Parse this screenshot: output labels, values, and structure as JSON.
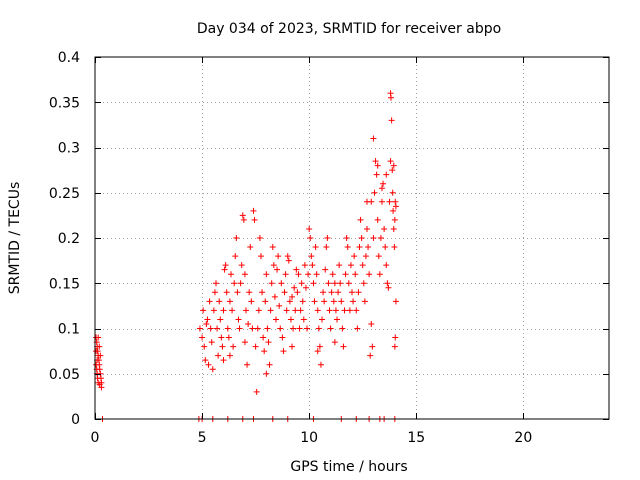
{
  "chart_data": {
    "type": "scatter",
    "title": "Day 034 of 2023, SRMTID for receiver abpo",
    "xlabel": "GPS time / hours",
    "ylabel": "SRMTID / TECUs",
    "xlim": [
      0,
      24
    ],
    "ylim": [
      0,
      0.4
    ],
    "grid": true,
    "marker": "+",
    "color": "#ff0000",
    "x_ticks": [
      {
        "value": 0,
        "label": "0"
      },
      {
        "value": 5,
        "label": "5"
      },
      {
        "value": 10,
        "label": "10"
      },
      {
        "value": 15,
        "label": "15"
      },
      {
        "value": 20,
        "label": "20"
      }
    ],
    "y_ticks": [
      {
        "value": 0,
        "label": "0"
      },
      {
        "value": 0.05,
        "label": "0.05"
      },
      {
        "value": 0.1,
        "label": "0.1"
      },
      {
        "value": 0.15,
        "label": "0.15"
      },
      {
        "value": 0.2,
        "label": "0.2"
      },
      {
        "value": 0.25,
        "label": "0.25"
      },
      {
        "value": 0.3,
        "label": "0.3"
      },
      {
        "value": 0.35,
        "label": "0.35"
      },
      {
        "value": 0.4,
        "label": "0.4"
      }
    ],
    "series": [
      {
        "name": "SRMTID",
        "points": [
          [
            0.05,
            0.09
          ],
          [
            0.08,
            0.085
          ],
          [
            0.1,
            0.08
          ],
          [
            0.12,
            0.075
          ],
          [
            0.15,
            0.07
          ],
          [
            0.05,
            0.06
          ],
          [
            0.08,
            0.055
          ],
          [
            0.1,
            0.05
          ],
          [
            0.12,
            0.045
          ],
          [
            0.15,
            0.04
          ],
          [
            0.18,
            0.065
          ],
          [
            0.2,
            0.06
          ],
          [
            0.22,
            0.055
          ],
          [
            0.25,
            0.05
          ],
          [
            0.28,
            0.045
          ],
          [
            0.3,
            0.04
          ],
          [
            0.3,
            0.035
          ],
          [
            0.2,
            0.08
          ],
          [
            0.15,
            0.09
          ],
          [
            0.25,
            0.07
          ],
          [
            0.1,
            0.065
          ],
          [
            0.05,
            0.075
          ],
          [
            0.22,
            0.038
          ],
          [
            0.35,
            0.0
          ],
          [
            4.85,
            0.0
          ],
          [
            5.0,
            0.0
          ],
          [
            5.5,
            0.0
          ],
          [
            6.2,
            0.0
          ],
          [
            6.9,
            0.0
          ],
          [
            7.4,
            0.0
          ],
          [
            8.3,
            0.0
          ],
          [
            9.0,
            0.0
          ],
          [
            10.2,
            0.0
          ],
          [
            11.5,
            0.0
          ],
          [
            12.2,
            0.0
          ],
          [
            12.8,
            0.0
          ],
          [
            13.3,
            0.0
          ],
          [
            13.5,
            0.0
          ],
          [
            14.0,
            0.0
          ],
          [
            4.9,
            0.1
          ],
          [
            5.0,
            0.09
          ],
          [
            5.05,
            0.12
          ],
          [
            5.1,
            0.08
          ],
          [
            5.15,
            0.065
          ],
          [
            5.2,
            0.105
          ],
          [
            5.25,
            0.11
          ],
          [
            5.3,
            0.06
          ],
          [
            5.35,
            0.13
          ],
          [
            5.4,
            0.1
          ],
          [
            5.45,
            0.085
          ],
          [
            5.5,
            0.055
          ],
          [
            5.55,
            0.12
          ],
          [
            5.6,
            0.14
          ],
          [
            5.65,
            0.15
          ],
          [
            5.7,
            0.1
          ],
          [
            5.75,
            0.07
          ],
          [
            5.8,
            0.13
          ],
          [
            5.85,
            0.11
          ],
          [
            5.9,
            0.09
          ],
          [
            5.95,
            0.08
          ],
          [
            6.0,
            0.12
          ],
          [
            6.05,
            0.165
          ],
          [
            6.1,
            0.17
          ],
          [
            6.15,
            0.14
          ],
          [
            6.2,
            0.1
          ],
          [
            6.25,
            0.09
          ],
          [
            6.3,
            0.13
          ],
          [
            6.35,
            0.16
          ],
          [
            6.4,
            0.12
          ],
          [
            6.45,
            0.08
          ],
          [
            6.5,
            0.15
          ],
          [
            6.55,
            0.18
          ],
          [
            6.6,
            0.2
          ],
          [
            6.65,
            0.14
          ],
          [
            6.7,
            0.11
          ],
          [
            6.75,
            0.1
          ],
          [
            6.8,
            0.15
          ],
          [
            6.85,
            0.17
          ],
          [
            6.9,
            0.225
          ],
          [
            6.95,
            0.22
          ],
          [
            7.0,
            0.16
          ],
          [
            7.05,
            0.12
          ],
          [
            7.1,
            0.06
          ],
          [
            7.15,
            0.105
          ],
          [
            7.2,
            0.14
          ],
          [
            7.25,
            0.19
          ],
          [
            7.3,
            0.13
          ],
          [
            7.35,
            0.1
          ],
          [
            7.4,
            0.23
          ],
          [
            7.45,
            0.22
          ],
          [
            7.5,
            0.08
          ],
          [
            7.55,
            0.03
          ],
          [
            7.6,
            0.1
          ],
          [
            7.65,
            0.12
          ],
          [
            7.7,
            0.2
          ],
          [
            7.75,
            0.18
          ],
          [
            7.8,
            0.14
          ],
          [
            7.85,
            0.09
          ],
          [
            7.9,
            0.075
          ],
          [
            7.95,
            0.13
          ],
          [
            8.0,
            0.16
          ],
          [
            8.05,
            0.1
          ],
          [
            8.1,
            0.085
          ],
          [
            8.15,
            0.06
          ],
          [
            8.2,
            0.12
          ],
          [
            8.25,
            0.15
          ],
          [
            8.3,
            0.19
          ],
          [
            8.35,
            0.17
          ],
          [
            8.4,
            0.135
          ],
          [
            8.45,
            0.11
          ],
          [
            8.5,
            0.165
          ],
          [
            8.55,
            0.18
          ],
          [
            8.6,
            0.125
          ],
          [
            8.65,
            0.1
          ],
          [
            8.7,
            0.15
          ],
          [
            8.75,
            0.09
          ],
          [
            8.8,
            0.075
          ],
          [
            8.85,
            0.14
          ],
          [
            8.9,
            0.16
          ],
          [
            8.95,
            0.12
          ],
          [
            9.0,
            0.18
          ],
          [
            9.05,
            0.175
          ],
          [
            9.1,
            0.13
          ],
          [
            9.15,
            0.11
          ],
          [
            9.2,
            0.08
          ],
          [
            9.25,
            0.1
          ],
          [
            9.3,
            0.145
          ],
          [
            9.35,
            0.12
          ],
          [
            9.4,
            0.165
          ],
          [
            9.45,
            0.14
          ],
          [
            9.5,
            0.16
          ],
          [
            9.55,
            0.1
          ],
          [
            9.6,
            0.12
          ],
          [
            9.65,
            0.15
          ],
          [
            9.7,
            0.13
          ],
          [
            9.75,
            0.11
          ],
          [
            9.8,
            0.17
          ],
          [
            9.85,
            0.145
          ],
          [
            9.9,
            0.1
          ],
          [
            9.95,
            0.16
          ],
          [
            10.0,
            0.21
          ],
          [
            10.05,
            0.2
          ],
          [
            10.1,
            0.18
          ],
          [
            10.15,
            0.17
          ],
          [
            10.2,
            0.15
          ],
          [
            10.25,
            0.13
          ],
          [
            10.3,
            0.19
          ],
          [
            10.35,
            0.16
          ],
          [
            10.4,
            0.12
          ],
          [
            10.45,
            0.1
          ],
          [
            10.5,
            0.08
          ],
          [
            10.55,
            0.06
          ],
          [
            10.6,
            0.11
          ],
          [
            10.65,
            0.14
          ],
          [
            10.7,
            0.13
          ],
          [
            10.75,
            0.165
          ],
          [
            10.8,
            0.19
          ],
          [
            10.85,
            0.2
          ],
          [
            10.9,
            0.15
          ],
          [
            10.95,
            0.12
          ],
          [
            11.0,
            0.1
          ],
          [
            11.05,
            0.14
          ],
          [
            11.1,
            0.16
          ],
          [
            11.15,
            0.13
          ],
          [
            11.2,
            0.15
          ],
          [
            11.25,
            0.12
          ],
          [
            11.3,
            0.11
          ],
          [
            11.35,
            0.14
          ],
          [
            11.4,
            0.17
          ],
          [
            11.45,
            0.15
          ],
          [
            11.5,
            0.13
          ],
          [
            11.55,
            0.1
          ],
          [
            11.6,
            0.08
          ],
          [
            11.65,
            0.12
          ],
          [
            11.7,
            0.16
          ],
          [
            11.75,
            0.2
          ],
          [
            11.8,
            0.19
          ],
          [
            11.85,
            0.15
          ],
          [
            11.9,
            0.12
          ],
          [
            11.95,
            0.17
          ],
          [
            12.0,
            0.14
          ],
          [
            12.05,
            0.13
          ],
          [
            12.1,
            0.18
          ],
          [
            12.15,
            0.16
          ],
          [
            12.2,
            0.12
          ],
          [
            12.25,
            0.1
          ],
          [
            12.3,
            0.14
          ],
          [
            12.35,
            0.19
          ],
          [
            12.4,
            0.22
          ],
          [
            12.45,
            0.2
          ],
          [
            12.5,
            0.17
          ],
          [
            12.55,
            0.15
          ],
          [
            12.6,
            0.13
          ],
          [
            12.65,
            0.18
          ],
          [
            12.7,
            0.21
          ],
          [
            12.75,
            0.19
          ],
          [
            12.8,
            0.16
          ],
          [
            12.85,
            0.07
          ],
          [
            12.9,
            0.105
          ],
          [
            12.95,
            0.08
          ],
          [
            13.0,
            0.2
          ],
          [
            13.05,
            0.25
          ],
          [
            13.1,
            0.285
          ],
          [
            13.15,
            0.27
          ],
          [
            13.2,
            0.22
          ],
          [
            13.25,
            0.18
          ],
          [
            13.3,
            0.16
          ],
          [
            13.35,
            0.2
          ],
          [
            13.4,
            0.24
          ],
          [
            13.45,
            0.26
          ],
          [
            13.5,
            0.21
          ],
          [
            13.55,
            0.19
          ],
          [
            13.6,
            0.17
          ],
          [
            13.65,
            0.15
          ],
          [
            13.7,
            0.145
          ],
          [
            13.75,
            0.24
          ],
          [
            13.8,
            0.36
          ],
          [
            13.82,
            0.355
          ],
          [
            13.85,
            0.33
          ],
          [
            13.88,
            0.275
          ],
          [
            13.9,
            0.25
          ],
          [
            13.92,
            0.23
          ],
          [
            13.95,
            0.21
          ],
          [
            13.98,
            0.19
          ],
          [
            14.0,
            0.22
          ],
          [
            14.02,
            0.24
          ],
          [
            14.05,
            0.235
          ],
          [
            14.0,
            0.08
          ],
          [
            14.02,
            0.09
          ],
          [
            14.05,
            0.13
          ],
          [
            13.0,
            0.31
          ],
          [
            13.95,
            0.28
          ],
          [
            13.8,
            0.285
          ],
          [
            13.6,
            0.27
          ],
          [
            13.4,
            0.255
          ],
          [
            13.2,
            0.28
          ],
          [
            12.9,
            0.24
          ],
          [
            12.7,
            0.24
          ],
          [
            6.0,
            0.065
          ],
          [
            6.3,
            0.07
          ],
          [
            7.0,
            0.085
          ],
          [
            8.0,
            0.05
          ],
          [
            9.2,
            0.135
          ],
          [
            10.4,
            0.075
          ],
          [
            11.2,
            0.085
          ]
        ]
      }
    ]
  }
}
